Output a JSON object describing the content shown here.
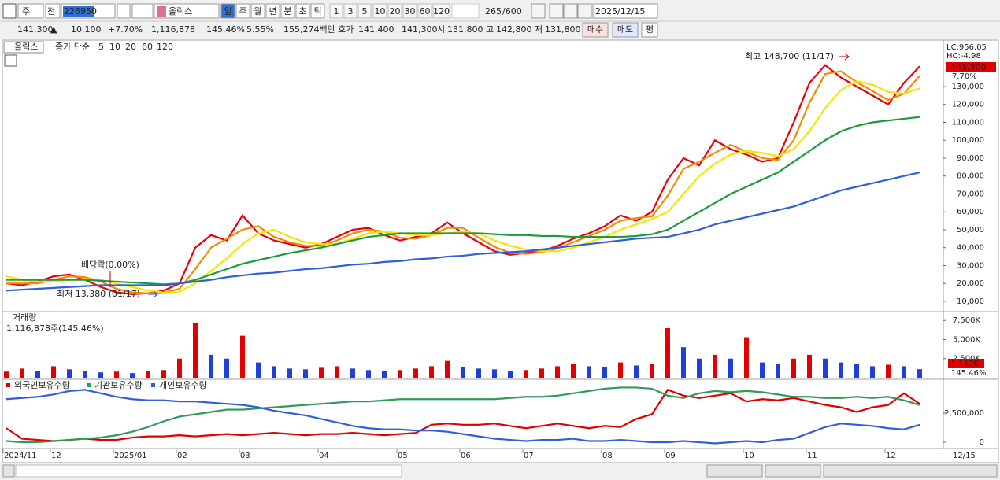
{
  "toolbar": {
    "period_type": "주",
    "prev": "전",
    "code": "226950",
    "name": "올릭스",
    "intervals": [
      "일",
      "주",
      "월",
      "년",
      "분",
      "초",
      "틱"
    ],
    "minutes": [
      "1",
      "3",
      "5",
      "10",
      "20",
      "30",
      "60",
      "120"
    ],
    "count": "265",
    "max": "/600",
    "date": "2025/12/15"
  },
  "quote": {
    "price": "141,300",
    "arrow": "▲",
    "change": "10,100",
    "rate": "+7.70%",
    "volume": "1,116,878",
    "volume_ratio": "145.46%",
    "turnover": "5.55%",
    "amount": "155,274백만",
    "ask_label": "호가",
    "ask": "141,400",
    "bid": "141,300",
    "open_label": "시",
    "open": "131,800",
    "high_label": "고",
    "high": "142,800",
    "low_label": "저",
    "low": "131,800",
    "buy": "매수",
    "sell": "매도",
    "avg": "평"
  },
  "chart_data": [
    {
      "type": "line",
      "title": "올릭스",
      "subtitle": "종가 단순",
      "ylim": [
        4700,
        155500
      ],
      "yticks": [
        {
          "value": 10000,
          "label": "10,000"
        },
        {
          "value": 20000,
          "label": "20,000"
        },
        {
          "value": 30000,
          "label": "30,000"
        },
        {
          "value": 40000,
          "label": "40,000"
        },
        {
          "value": 50000,
          "label": "50,000"
        },
        {
          "value": 60000,
          "label": "60,000"
        },
        {
          "value": 70000,
          "label": "70,000"
        },
        {
          "value": 80000,
          "label": "80,000"
        },
        {
          "value": 90000,
          "label": "90,000"
        },
        {
          "value": 100000,
          "label": "100,000"
        },
        {
          "value": 110000,
          "label": "110,000"
        },
        {
          "value": 120000,
          "label": "120,000"
        },
        {
          "value": 130000,
          "label": "130,000"
        }
      ],
      "lc": "LC:956.05",
      "hc": "HC:-4.98",
      "current_label": "141,300",
      "current_rate": "7.70%",
      "annotations": [
        "최고 148,700 (11/17)",
        "최저 13,380 (01/17)",
        "배당락(0.00%)"
      ],
      "series": [
        {
          "name": "5",
          "color": "#e8000b",
          "values": [
            20000,
            19000,
            21000,
            24000,
            25000,
            22000,
            18000,
            15000,
            14000,
            14500,
            16000,
            20000,
            40000,
            47000,
            44000,
            58000,
            48000,
            44000,
            42000,
            40000,
            42000,
            46000,
            50000,
            51000,
            47000,
            44000,
            46000,
            48000,
            54000,
            48000,
            43000,
            38000,
            36000,
            37000,
            38000,
            41000,
            45000,
            48000,
            52000,
            58000,
            55000,
            60000,
            78000,
            90000,
            86000,
            100000,
            95000,
            92000,
            88000,
            90000,
            110000,
            132000,
            142000,
            135000,
            130000,
            125000,
            120000,
            132000,
            141300
          ]
        },
        {
          "name": "10",
          "color": "#f08c00",
          "values": [
            20000,
            20000,
            20000,
            22000,
            24000,
            23500,
            21000,
            17000,
            15000,
            14500,
            15000,
            17000,
            28000,
            40000,
            45000,
            50000,
            52000,
            46000,
            43000,
            41000,
            41000,
            44000,
            48000,
            50000,
            49000,
            45500,
            45000,
            47000,
            51000,
            51000,
            45500,
            40500,
            37000,
            36500,
            37500,
            39500,
            43000,
            46500,
            50000,
            55000,
            56500,
            57500,
            69000,
            84000,
            88000,
            93000,
            97500,
            93500,
            90000,
            89000,
            100000,
            121000,
            137000,
            138500,
            132500,
            127500,
            122500,
            126000,
            136000
          ]
        },
        {
          "name": "20",
          "color": "#f2e600",
          "values": [
            24000,
            22000,
            21000,
            21000,
            22000,
            22500,
            22000,
            20000,
            18000,
            16000,
            15000,
            15500,
            20000,
            27000,
            34000,
            42000,
            48000,
            50000,
            46000,
            43000,
            42000,
            42000,
            45000,
            48000,
            49000,
            48000,
            47000,
            47000,
            48000,
            49000,
            48000,
            44000,
            41000,
            39000,
            38000,
            38000,
            40000,
            43000,
            46000,
            50000,
            53000,
            56000,
            60000,
            70000,
            80000,
            87000,
            92000,
            94000,
            93000,
            91000,
            95000,
            105000,
            118000,
            128000,
            133000,
            131000,
            127000,
            126000,
            129000
          ]
        },
        {
          "name": "60",
          "color": "#1c9a3c",
          "values": [
            22000,
            22000,
            22000,
            22000,
            22000,
            22000,
            21500,
            21000,
            20500,
            20000,
            19500,
            20000,
            22000,
            25000,
            28000,
            31000,
            33000,
            35000,
            37000,
            38500,
            40000,
            42000,
            44000,
            46000,
            47000,
            48000,
            48000,
            48000,
            48000,
            48000,
            48000,
            47500,
            47000,
            47000,
            46500,
            46500,
            46000,
            46000,
            46000,
            46000,
            46500,
            47500,
            50000,
            55000,
            60000,
            65000,
            70000,
            74000,
            78000,
            82000,
            88000,
            94000,
            100000,
            105000,
            108000,
            110000,
            111000,
            112000,
            113000
          ]
        },
        {
          "name": "120",
          "color": "#2f5fd8",
          "values": [
            16000,
            16500,
            17000,
            17500,
            18000,
            18500,
            19000,
            19000,
            19000,
            19000,
            19000,
            20000,
            21000,
            22000,
            23500,
            24500,
            25500,
            26000,
            27000,
            28000,
            28500,
            29500,
            30500,
            31000,
            32000,
            32500,
            33500,
            34000,
            35000,
            35500,
            36500,
            37000,
            37500,
            38000,
            39000,
            40000,
            41000,
            42000,
            43000,
            44000,
            45000,
            45500,
            46000,
            48000,
            50000,
            53000,
            55000,
            57000,
            59000,
            61000,
            63000,
            66000,
            69000,
            72000,
            74000,
            76000,
            78000,
            80000,
            82000
          ]
        }
      ]
    },
    {
      "type": "bar",
      "title": "거래량",
      "subtitle": "1,116,878주(145.46%)",
      "ylim": [
        0,
        8450000
      ],
      "yticks": [
        {
          "value": 2500000,
          "label": "2,500K"
        },
        {
          "value": 5000000,
          "label": "5,000K"
        },
        {
          "value": 7500000,
          "label": "7,500K"
        }
      ],
      "current_label": "1,117K",
      "current_ratio": "145.46%",
      "up_color": "#e00000",
      "down_color": "#1f3fd8",
      "values": [
        800000,
        1200000,
        900000,
        1500000,
        1100000,
        900000,
        700000,
        800000,
        600000,
        900000,
        1000000,
        2500000,
        7200000,
        3000000,
        2500000,
        5500000,
        2000000,
        1500000,
        1200000,
        1100000,
        1300000,
        1500000,
        1200000,
        1000000,
        900000,
        1000000,
        1200000,
        1500000,
        2200000,
        1400000,
        1200000,
        1100000,
        900000,
        1000000,
        1200000,
        1500000,
        1800000,
        1500000,
        1400000,
        2000000,
        1600000,
        1800000,
        6500000,
        4000000,
        2500000,
        3000000,
        2500000,
        5300000,
        2000000,
        1800000,
        2500000,
        3000000,
        2500000,
        2000000,
        1800000,
        1500000,
        1700000,
        1500000,
        1116878
      ]
    },
    {
      "type": "line",
      "ylim": [
        -540000,
        5270000
      ],
      "yticks": [
        0,
        {
          "value": 2500000,
          "label": "2,500,000"
        }
      ],
      "categories": [
        "2024/11",
        null,
        null,
        "12",
        null,
        null,
        null,
        "2025/01",
        null,
        null,
        null,
        "02",
        null,
        null,
        null,
        "03",
        null,
        null,
        null,
        null,
        "04",
        null,
        null,
        null,
        null,
        "05",
        null,
        null,
        null,
        "06",
        null,
        null,
        null,
        "07",
        null,
        null,
        null,
        null,
        "08",
        null,
        null,
        null,
        "09",
        null,
        null,
        null,
        null,
        "10",
        null,
        null,
        null,
        "11",
        null,
        null,
        null,
        null,
        "12",
        null,
        null
      ],
      "last_date": "12/15",
      "series": [
        {
          "name": "외국인보유수량",
          "color": "#e00000",
          "values": [
            1200000,
            300000,
            200000,
            100000,
            200000,
            300000,
            200000,
            200000,
            400000,
            500000,
            500000,
            600000,
            500000,
            600000,
            700000,
            600000,
            700000,
            800000,
            700000,
            600000,
            700000,
            700000,
            800000,
            700000,
            600000,
            700000,
            800000,
            1500000,
            1600000,
            1500000,
            1500000,
            1600000,
            1400000,
            1200000,
            1400000,
            1600000,
            1400000,
            1200000,
            1400000,
            1300000,
            2000000,
            2400000,
            4500000,
            4000000,
            3800000,
            4000000,
            4200000,
            3500000,
            3700000,
            3600000,
            3800000,
            3500000,
            3200000,
            3000000,
            2600000,
            3000000,
            3200000,
            4200000,
            3300000
          ]
        },
        {
          "name": "기관보유수량",
          "color": "#2f9a5a",
          "values": [
            100000,
            0,
            0,
            100000,
            200000,
            300000,
            400000,
            600000,
            900000,
            1300000,
            1800000,
            2200000,
            2400000,
            2600000,
            2800000,
            2800000,
            2900000,
            3000000,
            3100000,
            3200000,
            3300000,
            3400000,
            3500000,
            3500000,
            3600000,
            3700000,
            3700000,
            3700000,
            3700000,
            3700000,
            3700000,
            3700000,
            3800000,
            3900000,
            3900000,
            4000000,
            4200000,
            4400000,
            4600000,
            4700000,
            4700000,
            4600000,
            4000000,
            3800000,
            4200000,
            4400000,
            4300000,
            4400000,
            4300000,
            4100000,
            3900000,
            3900000,
            3800000,
            3800000,
            3900000,
            3800000,
            3900000,
            3600000,
            3200000
          ]
        },
        {
          "name": "개인보유수량",
          "color": "#2f5fd8",
          "values": [
            3700000,
            3800000,
            3900000,
            4100000,
            4400000,
            4500000,
            4200000,
            3900000,
            3700000,
            3600000,
            3600000,
            3500000,
            3500000,
            3400000,
            3300000,
            3200000,
            3000000,
            2700000,
            2500000,
            2300000,
            2000000,
            1700000,
            1400000,
            1200000,
            1100000,
            1100000,
            1000000,
            1000000,
            900000,
            700000,
            500000,
            300000,
            200000,
            100000,
            200000,
            200000,
            300000,
            100000,
            100000,
            200000,
            100000,
            0,
            0,
            100000,
            0,
            -100000,
            0,
            100000,
            0,
            200000,
            300000,
            800000,
            1300000,
            1600000,
            1500000,
            1400000,
            1200000,
            1100000,
            1500000
          ]
        }
      ]
    }
  ]
}
